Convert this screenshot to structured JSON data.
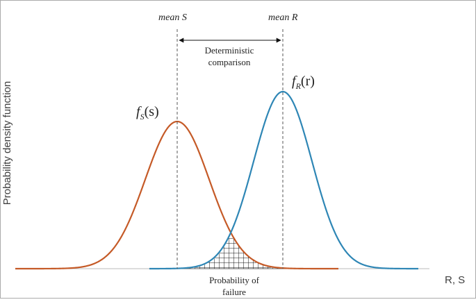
{
  "figure": {
    "y_axis_label": "Probability density function",
    "x_axis_label": "R, S",
    "mean_s_label": "mean S",
    "mean_r_label": "mean R",
    "deterministic_line1": "Deterministic",
    "deterministic_line2": "comparison",
    "failure_line1": "Probability of",
    "failure_line2": "failure",
    "fs_symbol": "f",
    "fs_subscript": "S",
    "fs_argument": "(s)",
    "fr_symbol": "f",
    "fr_subscript": "R",
    "fr_argument": "(r)"
  },
  "colors": {
    "stress_curve": "#c55a27",
    "resistance_curve": "#2e86b5",
    "frame": "#aaaaaa",
    "text": "#222222"
  }
}
